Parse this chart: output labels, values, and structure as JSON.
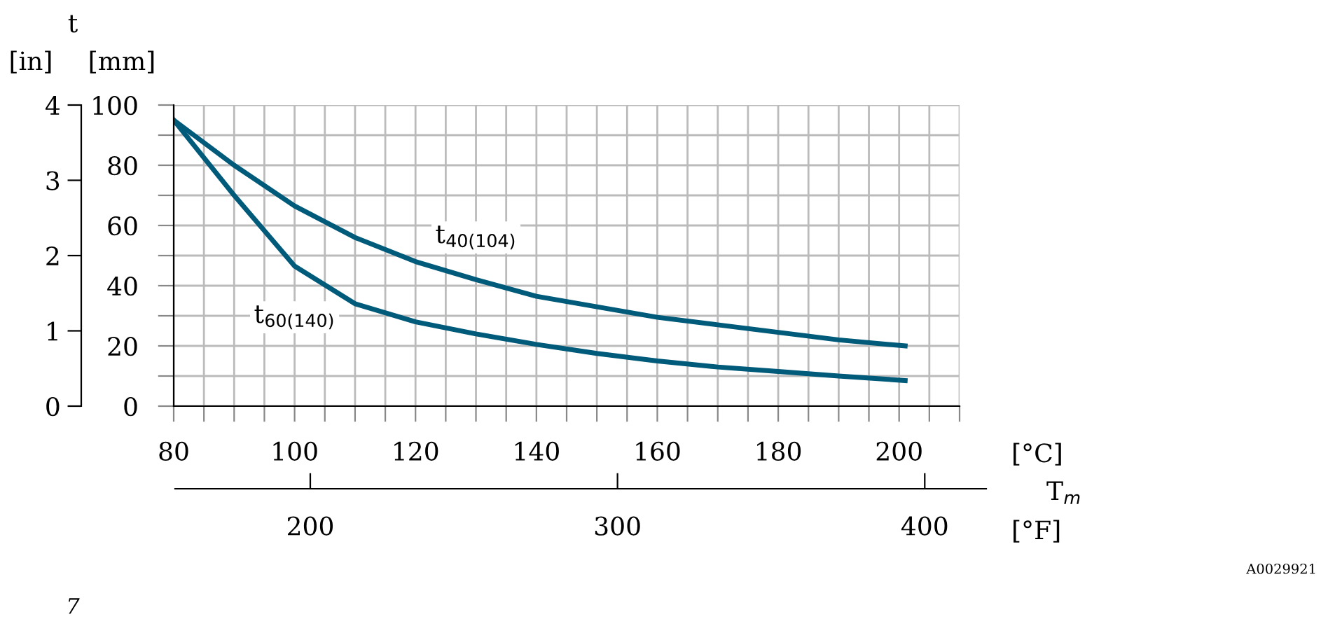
{
  "chart_data": {
    "type": "line",
    "x": [
      80,
      90,
      100,
      110,
      120,
      130,
      140,
      150,
      160,
      170,
      180,
      190,
      201
    ],
    "series": [
      {
        "name": "t$_{40(104)}$",
        "color": "#005a7a",
        "values": [
          95,
          80,
          66.5,
          56,
          48,
          42,
          36.5,
          33,
          29.5,
          27,
          24.5,
          22,
          20
        ]
      },
      {
        "name": "t$_{60(140)}$",
        "color": "#005a7a",
        "values": [
          95,
          70,
          46.5,
          34,
          28,
          24,
          20.5,
          17.5,
          15,
          13,
          11.5,
          10,
          8.5
        ]
      }
    ],
    "xlabel": "[°C]",
    "ylabel": "[mm]",
    "y2label": "[in]",
    "x2label": "[°F]",
    "xlim": [
      80,
      210
    ],
    "xticks": [
      80,
      {
        "value": 85,
        "label": null
      },
      {
        "value": 90,
        "label": null
      },
      {
        "value": 95,
        "label": null
      },
      100,
      {
        "value": 105,
        "label": null
      },
      {
        "value": 110,
        "label": null
      },
      {
        "value": 115,
        "label": null
      },
      120,
      {
        "value": 125,
        "label": null
      },
      {
        "value": 130,
        "label": null
      },
      {
        "value": 135,
        "label": null
      },
      140,
      {
        "value": 145,
        "label": null
      },
      {
        "value": 150,
        "label": null
      },
      {
        "value": 155,
        "label": null
      },
      160,
      {
        "value": 165,
        "label": null
      },
      {
        "value": 170,
        "label": null
      },
      {
        "value": 175,
        "label": null
      },
      180,
      {
        "value": 185,
        "label": null
      },
      {
        "value": 190,
        "label": null
      },
      {
        "value": 195,
        "label": null
      },
      200,
      {
        "value": 205,
        "label": null
      },
      {
        "value": 210,
        "label": null
      }
    ],
    "ylim": [
      0,
      100
    ],
    "yticks": [
      0,
      {
        "value": 10,
        "label": null
      },
      20,
      {
        "value": 30,
        "label": null
      },
      40,
      {
        "value": 50,
        "label": null
      },
      60,
      {
        "value": 70,
        "label": null
      },
      80,
      {
        "value": 90,
        "label": null
      },
      100
    ],
    "y2lim": [
      0,
      4
    ],
    "y2ticks": [
      0,
      1,
      2,
      3,
      4
    ],
    "x2lim": [
      156,
      420
    ],
    "x2ticks": [
      200,
      300,
      400
    ],
    "grid": true,
    "annotations": [
      "t",
      "T$_{m}$",
      "A0029921",
      "7"
    ]
  }
}
